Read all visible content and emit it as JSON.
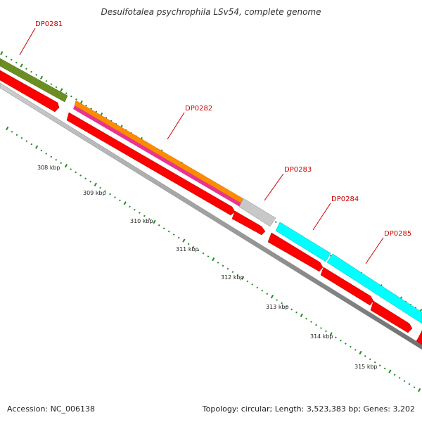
{
  "title": "Desulfotalea psychrophila LSv54, complete genome",
  "footer": {
    "accession_label": "Accession:",
    "accession": "NC_006138",
    "topology_label": "Topology:",
    "topology": "circular",
    "length_label": "Length:",
    "length": "3,523,383 bp",
    "genes_label": "Genes:",
    "genes": "3,202"
  },
  "genes": [
    {
      "label": "DP0281",
      "color": "#6b8e23"
    },
    {
      "label": "DP0282",
      "color": "#ff8c00"
    },
    {
      "label": "DP0283",
      "color": "#c0c0c0"
    },
    {
      "label": "DP0284",
      "color": "#00ffff"
    },
    {
      "label": "DP0285",
      "color": "#00ffff"
    }
  ],
  "kbp_ticks": [
    "308 kbp",
    "309 kbp",
    "310 kbp",
    "311 kbp",
    "312 kbp",
    "313 kbp",
    "314 kbp",
    "315 kbp"
  ],
  "colors": {
    "cds": "#ff0000",
    "backbone": "#808080",
    "gc_skew": "#228b22",
    "label_line": "#cc0000",
    "magenta_track": "#e8338f"
  }
}
